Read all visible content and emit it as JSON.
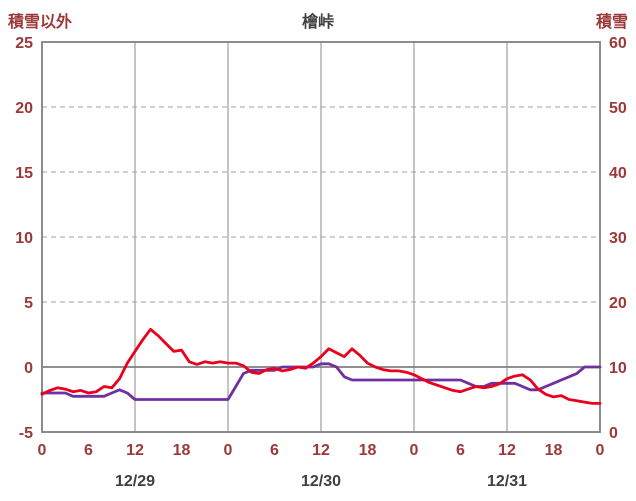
{
  "chart_data": {
    "type": "line",
    "title": "檜峠",
    "left_axis": {
      "title": "積雪以外",
      "min": -5,
      "max": 25,
      "tick_interval": 5,
      "ticks": [
        25,
        20,
        15,
        10,
        5,
        0,
        -5
      ]
    },
    "right_axis": {
      "title": "積雪",
      "min": 0,
      "max": 60,
      "tick_interval": 10,
      "ticks": [
        60,
        50,
        40,
        30,
        20,
        10,
        0
      ]
    },
    "x_axis": {
      "hours_span": 72,
      "tick_interval_hours": 6,
      "tick_labels": [
        "0",
        "6",
        "12",
        "18",
        "0",
        "6",
        "12",
        "18",
        "0",
        "6",
        "12",
        "18",
        "0"
      ],
      "date_labels": [
        "12/29",
        "12/30",
        "12/31"
      ],
      "vertical_gridlines_hours": [
        12,
        24,
        36,
        48,
        60
      ]
    },
    "horizontal_gridlines_left_values": [
      20,
      15,
      10,
      5
    ],
    "zero_line_left_value": 0,
    "grid": true,
    "legend": "none",
    "colors": {
      "axis_text": "#9b3938",
      "date_text": "#404040",
      "title_text": "#404040",
      "axis_line": "#7f7f7f",
      "gridline": "#b3b3b3",
      "gridline_vertical": "#9e9e9e",
      "red_line": "#e8001c",
      "purple_line": "#7030a0"
    },
    "series": [
      {
        "id": "purple-series-line",
        "axis": "right",
        "color": "#7030a0",
        "x_step_hours": 1,
        "values": [
          6,
          6,
          6,
          6,
          5.5,
          5.5,
          5.5,
          5.5,
          5.5,
          6,
          6.5,
          6,
          5,
          5,
          5,
          5,
          5,
          5,
          5,
          5,
          5,
          5,
          5,
          5,
          5,
          7,
          9,
          9.5,
          9.5,
          9.5,
          9.5,
          10,
          10,
          10,
          10,
          10,
          10.5,
          10.5,
          10,
          8.5,
          8,
          8,
          8,
          8,
          8,
          8,
          8,
          8,
          8,
          8,
          8,
          8,
          8,
          8,
          8,
          7.5,
          7,
          7,
          7.5,
          7.5,
          7.5,
          7.5,
          7,
          6.5,
          6.5,
          7,
          7.5,
          8,
          8.5,
          9,
          10,
          10,
          10
        ]
      },
      {
        "id": "red-series-line",
        "axis": "left",
        "color": "#e8001c",
        "x_step_hours": 1,
        "values": [
          -2.1,
          -1.8,
          -1.6,
          -1.7,
          -1.9,
          -1.8,
          -2.0,
          -1.9,
          -1.5,
          -1.6,
          -0.9,
          0.3,
          1.2,
          2.1,
          2.9,
          2.4,
          1.8,
          1.2,
          1.3,
          0.4,
          0.2,
          0.4,
          0.3,
          0.4,
          0.3,
          0.3,
          0.1,
          -0.4,
          -0.5,
          -0.2,
          -0.1,
          -0.3,
          -0.2,
          0.0,
          -0.1,
          0.3,
          0.8,
          1.4,
          1.1,
          0.8,
          1.4,
          0.9,
          0.3,
          0.0,
          -0.2,
          -0.3,
          -0.3,
          -0.4,
          -0.6,
          -0.9,
          -1.2,
          -1.4,
          -1.6,
          -1.8,
          -1.9,
          -1.7,
          -1.5,
          -1.6,
          -1.5,
          -1.3,
          -0.9,
          -0.7,
          -0.6,
          -1.0,
          -1.7,
          -2.1,
          -2.3,
          -2.2,
          -2.5,
          -2.6,
          -2.7,
          -2.8,
          -2.8
        ]
      }
    ]
  }
}
